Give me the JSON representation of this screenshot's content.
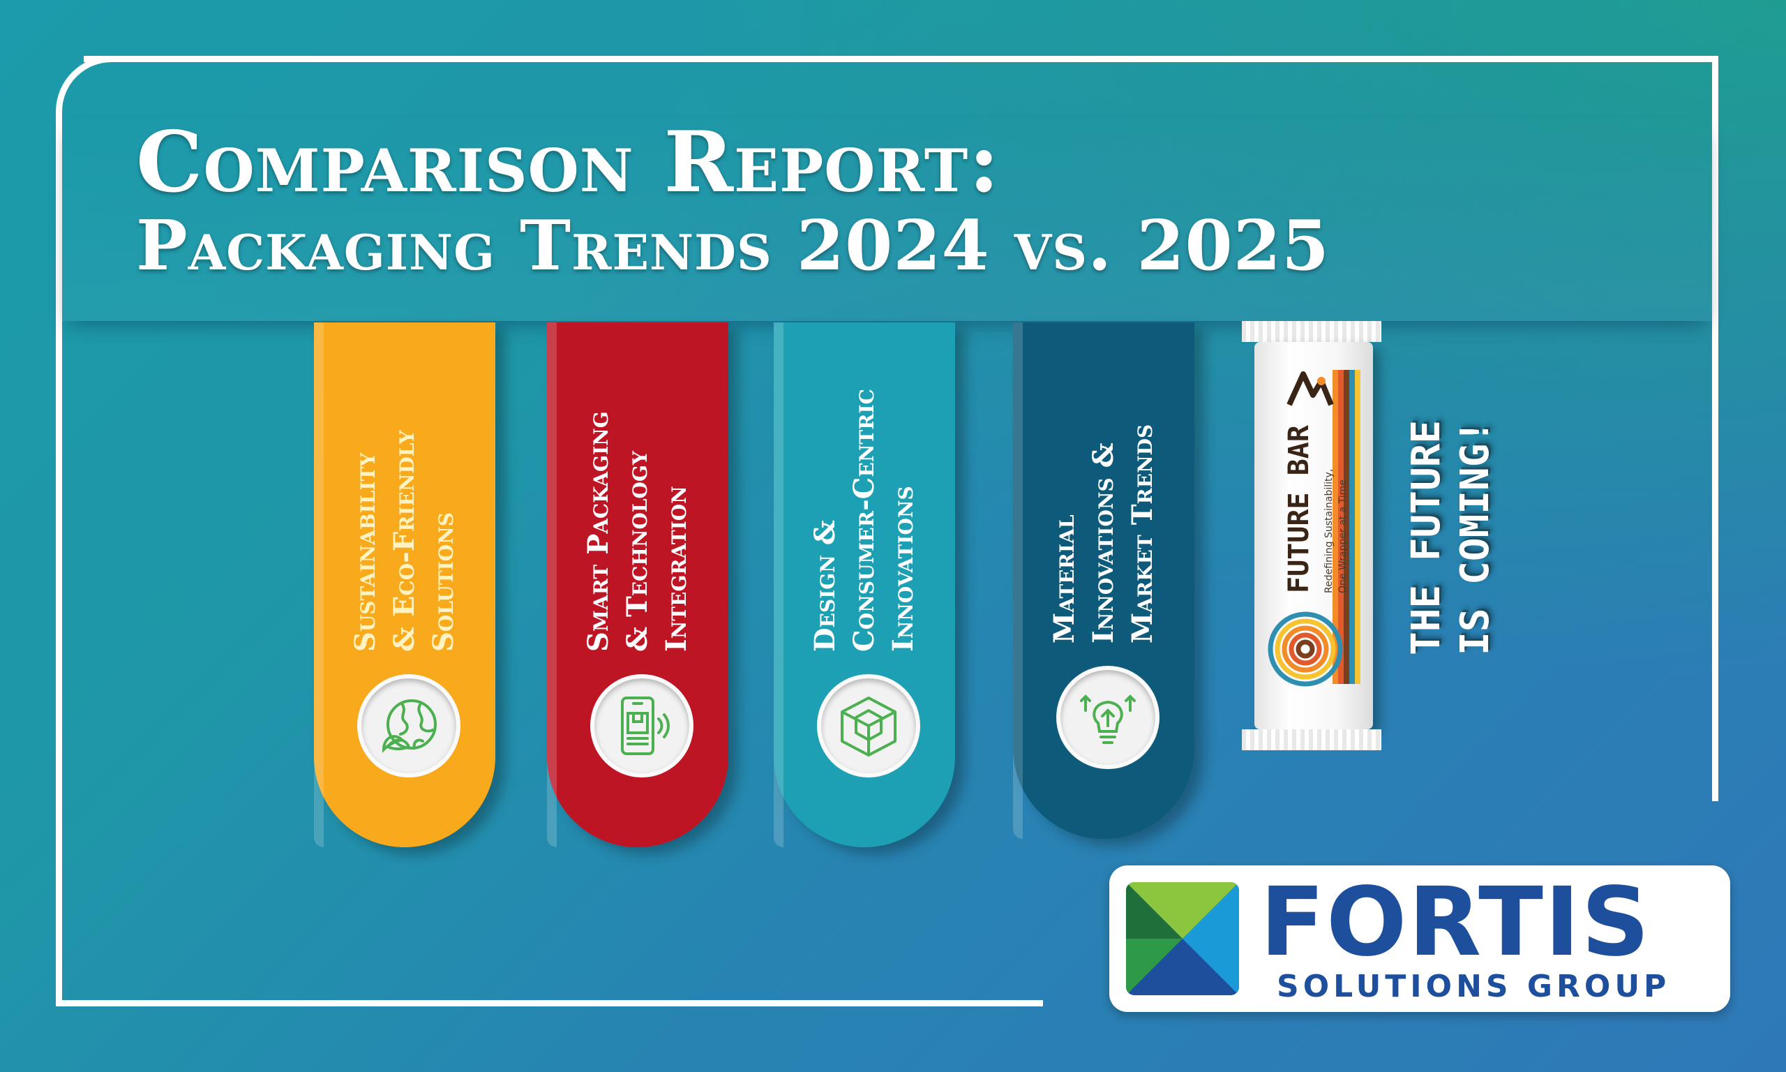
{
  "title": {
    "line1": "Comparison Report:",
    "line2": "Packaging Trends 2024 vs. 2025"
  },
  "pillars": [
    {
      "label": "Sustainability\n& Eco-Friendly\nSolutions",
      "color": "#f9aa1c",
      "icon": "globe-leaf-icon"
    },
    {
      "label": "Smart Packaging\n& Technology\nIntegration",
      "color": "#be1525",
      "icon": "smartphone-nfc-icon"
    },
    {
      "label": "Design &\nConsumer-Centric\nInnovations",
      "color": "#1ea0b4",
      "icon": "3d-box-icon"
    },
    {
      "label": "Material\nInnovations &\nMarket Trends",
      "color": "#0d5a7a",
      "icon": "lightbulb-growth-icon"
    }
  ],
  "product": {
    "name": "FUTURE BAR",
    "tagline": "Redefining Sustainability,\nOne Wrapper at a Time."
  },
  "teaser": "THE FUTURE\nIS COMING!",
  "brand": {
    "name": "FORTIS",
    "subtitle": "SOLUTIONS GROUP",
    "color": "#1d4f9c"
  },
  "icon_color": "#4caf50"
}
